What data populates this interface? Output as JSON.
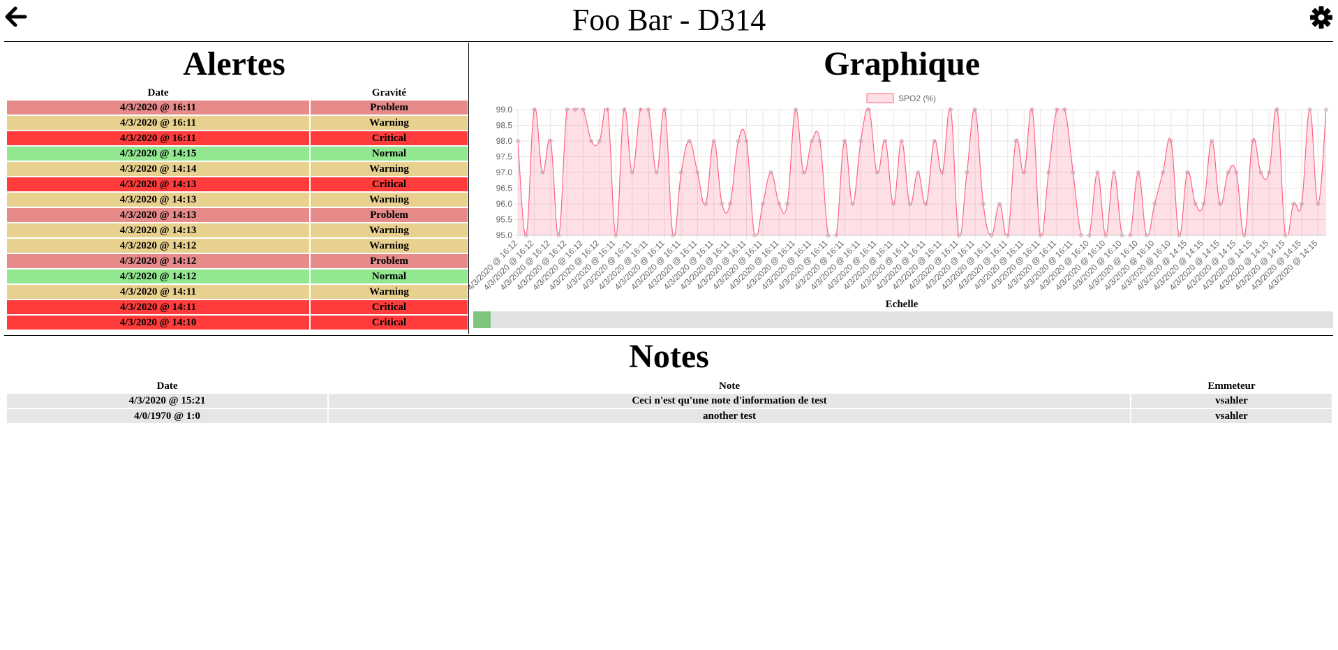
{
  "header": {
    "title": "Foo Bar - D314"
  },
  "alerts": {
    "title": "Alertes",
    "columns": [
      "Date",
      "Gravité"
    ],
    "colors": {
      "Problem": "#e68a8a",
      "Warning": "#e8d18f",
      "Critical": "#ff3b3b",
      "Normal": "#91e891"
    },
    "rows": [
      [
        "4/3/2020 @ 16:11",
        "Problem"
      ],
      [
        "4/3/2020 @ 16:11",
        "Warning"
      ],
      [
        "4/3/2020 @ 16:11",
        "Critical"
      ],
      [
        "4/3/2020 @ 14:15",
        "Normal"
      ],
      [
        "4/3/2020 @ 14:14",
        "Warning"
      ],
      [
        "4/3/2020 @ 14:13",
        "Critical"
      ],
      [
        "4/3/2020 @ 14:13",
        "Warning"
      ],
      [
        "4/3/2020 @ 14:13",
        "Problem"
      ],
      [
        "4/3/2020 @ 14:13",
        "Warning"
      ],
      [
        "4/3/2020 @ 14:12",
        "Warning"
      ],
      [
        "4/3/2020 @ 14:12",
        "Problem"
      ],
      [
        "4/3/2020 @ 14:12",
        "Normal"
      ],
      [
        "4/3/2020 @ 14:11",
        "Warning"
      ],
      [
        "4/3/2020 @ 14:11",
        "Critical"
      ],
      [
        "4/3/2020 @ 14:10",
        "Critical"
      ]
    ]
  },
  "graph": {
    "title": "Graphique",
    "scale_label": "Echelle",
    "chart_data": {
      "type": "line",
      "x": [
        "4/3/2020 @ 16:12",
        null,
        "4/3/2020 @ 16:12",
        null,
        "4/3/2020 @ 16:12",
        null,
        "4/3/2020 @ 16:12",
        null,
        "4/3/2020 @ 16:12",
        null,
        "4/3/2020 @ 16:12",
        null,
        "4/3/2020 @ 16:11",
        null,
        "4/3/2020 @ 16:11",
        null,
        "4/3/2020 @ 16:11",
        null,
        "4/3/2020 @ 16:11",
        null,
        "4/3/2020 @ 16:11",
        null,
        "4/3/2020 @ 16:11",
        null,
        "4/3/2020 @ 16:11",
        null,
        "4/3/2020 @ 16:11",
        null,
        "4/3/2020 @ 16:11",
        null,
        "4/3/2020 @ 16:11",
        null,
        "4/3/2020 @ 16:11",
        null,
        "4/3/2020 @ 16:11",
        null,
        "4/3/2020 @ 16:11",
        null,
        "4/3/2020 @ 16:11",
        null,
        "4/3/2020 @ 16:11",
        null,
        "4/3/2020 @ 16:11",
        null,
        "4/3/2020 @ 16:11",
        null,
        "4/3/2020 @ 16:11",
        null,
        "4/3/2020 @ 16:11",
        null,
        "4/3/2020 @ 16:11",
        null,
        "4/3/2020 @ 16:11",
        null,
        "4/3/2020 @ 16:11",
        null,
        "4/3/2020 @ 16:11",
        null,
        "4/3/2020 @ 16:11",
        null,
        "4/3/2020 @ 16:11",
        null,
        "4/3/2020 @ 16:11",
        null,
        "4/3/2020 @ 16:11",
        null,
        "4/3/2020 @ 16:11",
        null,
        "4/3/2020 @ 16:11",
        null,
        "4/3/2020 @ 16:10",
        null,
        "4/3/2020 @ 16:10",
        null,
        "4/3/2020 @ 16:10",
        null,
        "4/3/2020 @ 16:10",
        null,
        "4/3/2020 @ 16:10",
        null,
        "4/3/2020 @ 16:10",
        null,
        "4/3/2020 @ 14:15",
        null,
        "4/3/2020 @ 14:15",
        null,
        "4/3/2020 @ 14:15",
        null,
        "4/3/2020 @ 14:15",
        null,
        "4/3/2020 @ 14:15",
        null,
        "4/3/2020 @ 14:15",
        null,
        "4/3/2020 @ 14:15",
        null,
        "4/3/2020 @ 14:15",
        null,
        "4/3/2020 @ 14:15",
        null
      ],
      "series": [
        {
          "name": "SPO2 (%)",
          "color": "#ff6384",
          "values": [
            98,
            95,
            99,
            97,
            98,
            95,
            99,
            99,
            99,
            98,
            98,
            99,
            95,
            99,
            97,
            99,
            99,
            97,
            99,
            95,
            97,
            98,
            97,
            96,
            98,
            96,
            96,
            98,
            98,
            95,
            96,
            97,
            96,
            96,
            99,
            97,
            98,
            98,
            95,
            95,
            98,
            96,
            98,
            99,
            97,
            98,
            96,
            98,
            96,
            97,
            96,
            98,
            97,
            99,
            95,
            97,
            99,
            96,
            95,
            96,
            95,
            98,
            97,
            99,
            95,
            97,
            99,
            99,
            97,
            95,
            95,
            97,
            95,
            97,
            95,
            95,
            97,
            95,
            96,
            97,
            98,
            95,
            97,
            96,
            96,
            98,
            96,
            97,
            97,
            95,
            98,
            97,
            97,
            99,
            95,
            96,
            96,
            99,
            96,
            99
          ]
        }
      ],
      "ylim": [
        95,
        99
      ],
      "yticks": [
        {
          "value": 95,
          "label": "95.0"
        },
        95.5,
        {
          "value": 96,
          "label": "96.0"
        },
        96.5,
        {
          "value": 97,
          "label": "97.0"
        },
        97.5,
        {
          "value": 98,
          "label": "98.0"
        },
        98.5,
        {
          "value": 99,
          "label": "99.0"
        }
      ],
      "grid": true
    }
  },
  "notes": {
    "title": "Notes",
    "columns": [
      "Date",
      "Note",
      "Emmeteur"
    ],
    "rows": [
      [
        "4/3/2020 @ 15:21",
        "Ceci n'est qu'une note d'information de test",
        "vsahler"
      ],
      [
        "4/0/1970 @ 1:0",
        "another test",
        "vsahler"
      ]
    ]
  }
}
